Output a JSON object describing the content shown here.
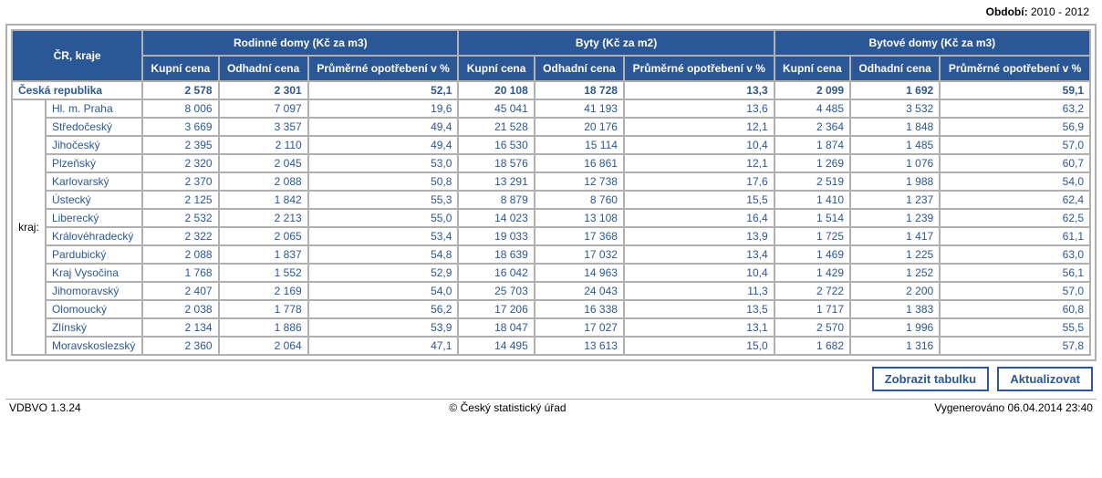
{
  "period_label": "Období:",
  "period_value": "2010 - 2012",
  "buttons": {
    "show_table": "Zobrazit tabulku",
    "refresh": "Aktualizovat"
  },
  "footer": {
    "version": "VDBVO 1.3.24",
    "org": "© Český statistický úřad",
    "generated": "Vygenerováno 06.04.2014 23:40"
  },
  "table": {
    "main_header": "ČR, kraje",
    "side_label": "kraj:",
    "groups": [
      {
        "title": "Rodinné domy (Kč za m3)",
        "cols": [
          "Kupní cena",
          "Odhadní cena",
          "Průměrné opotřebení v %"
        ]
      },
      {
        "title": "Byty (Kč za m2)",
        "cols": [
          "Kupní cena",
          "Odhadní cena",
          "Průměrné opotřebení v %"
        ]
      },
      {
        "title": "Bytové domy (Kč za m3)",
        "cols": [
          "Kupní cena",
          "Odhadní cena",
          "Průměrné opotřebení v %"
        ]
      }
    ],
    "total_row": {
      "label": "Česká republika",
      "v": [
        "2 578",
        "2 301",
        "52,1",
        "20 108",
        "18 728",
        "13,3",
        "2 099",
        "1 692",
        "59,1"
      ]
    },
    "rows": [
      {
        "label": "Hl. m. Praha",
        "v": [
          "8 006",
          "7 097",
          "19,6",
          "45 041",
          "41 193",
          "13,6",
          "4 485",
          "3 532",
          "63,2"
        ]
      },
      {
        "label": "Středočeský",
        "v": [
          "3 669",
          "3 357",
          "49,4",
          "21 528",
          "20 176",
          "12,1",
          "2 364",
          "1 848",
          "56,9"
        ]
      },
      {
        "label": "Jihočeský",
        "v": [
          "2 395",
          "2 110",
          "49,4",
          "16 530",
          "15 114",
          "10,4",
          "1 874",
          "1 485",
          "57,0"
        ]
      },
      {
        "label": "Plzeňský",
        "v": [
          "2 320",
          "2 045",
          "53,0",
          "18 576",
          "16 861",
          "12,1",
          "1 269",
          "1 076",
          "60,7"
        ]
      },
      {
        "label": "Karlovarský",
        "v": [
          "2 370",
          "2 088",
          "50,8",
          "13 291",
          "12 738",
          "17,6",
          "2 519",
          "1 988",
          "54,0"
        ]
      },
      {
        "label": "Ústecký",
        "v": [
          "2 125",
          "1 842",
          "55,3",
          "8 879",
          "8 760",
          "15,5",
          "1 410",
          "1 237",
          "62,4"
        ]
      },
      {
        "label": "Liberecký",
        "v": [
          "2 532",
          "2 213",
          "55,0",
          "14 023",
          "13 108",
          "16,4",
          "1 514",
          "1 239",
          "62,5"
        ]
      },
      {
        "label": "Královéhradecký",
        "v": [
          "2 322",
          "2 065",
          "53,4",
          "19 033",
          "17 368",
          "13,9",
          "1 725",
          "1 417",
          "61,1"
        ]
      },
      {
        "label": "Pardubický",
        "v": [
          "2 088",
          "1 837",
          "54,8",
          "18 639",
          "17 032",
          "13,4",
          "1 469",
          "1 225",
          "63,0"
        ]
      },
      {
        "label": "Kraj Vysočina",
        "v": [
          "1 768",
          "1 552",
          "52,9",
          "16 042",
          "14 963",
          "10,4",
          "1 429",
          "1 252",
          "56,1"
        ]
      },
      {
        "label": "Jihomoravský",
        "v": [
          "2 407",
          "2 169",
          "54,0",
          "25 703",
          "24 043",
          "11,3",
          "2 722",
          "2 200",
          "57,0"
        ]
      },
      {
        "label": "Olomoucký",
        "v": [
          "2 038",
          "1 778",
          "56,2",
          "17 206",
          "16 338",
          "13,5",
          "1 717",
          "1 383",
          "60,8"
        ]
      },
      {
        "label": "Zlínský",
        "v": [
          "2 134",
          "1 886",
          "53,9",
          "18 047",
          "17 027",
          "13,1",
          "2 570",
          "1 996",
          "55,5"
        ]
      },
      {
        "label": "Moravskoslezský",
        "v": [
          "2 360",
          "2 064",
          "47,1",
          "14 495",
          "13 613",
          "15,0",
          "1 682",
          "1 316",
          "57,8"
        ]
      }
    ]
  }
}
